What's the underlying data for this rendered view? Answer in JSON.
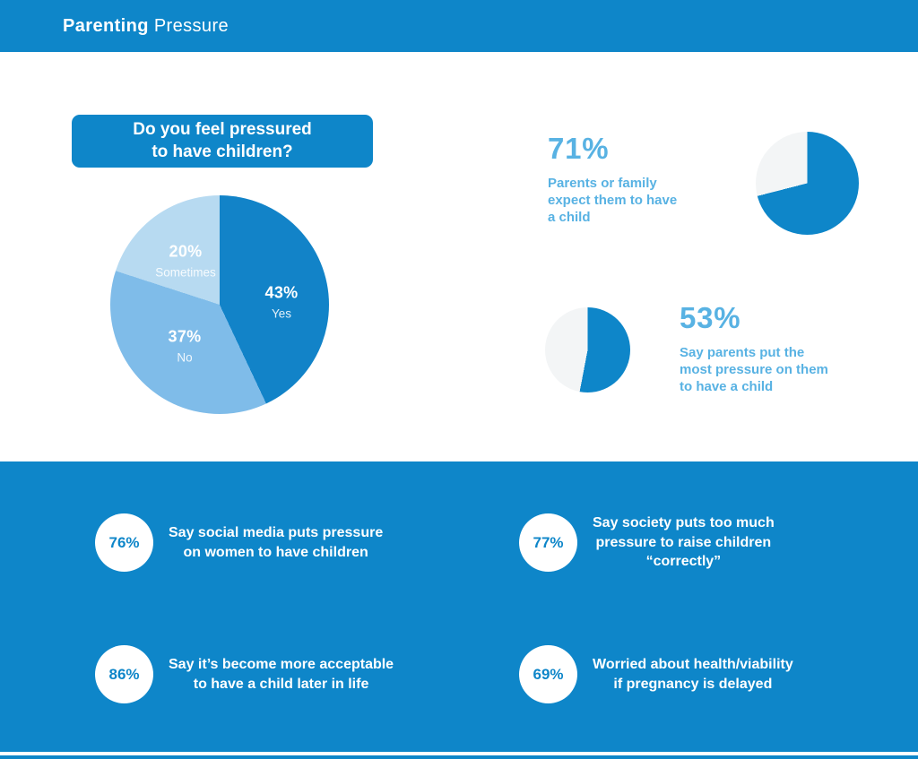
{
  "colors": {
    "primary_blue": "#0e86c9",
    "accent_text_blue": "#58b2e3",
    "pie_yes": "#1283c8",
    "pie_no": "#7fbce9",
    "pie_sometimes": "#b7daf1",
    "donut_empty": "#f3f5f6",
    "stat_circle_bg": "#ffffff"
  },
  "header": {
    "title_bold": "Parenting",
    "title_light": "Pressure"
  },
  "question_badge": {
    "lines": [
      "Do you feel pressured",
      "to have children?"
    ]
  },
  "chart_data": [
    {
      "type": "pie",
      "title": "Do you feel pressured to have children?",
      "slices": [
        {
          "label": "Yes",
          "value": 43,
          "display": "43%"
        },
        {
          "label": "No",
          "value": 37,
          "display": "37%"
        },
        {
          "label": "Sometimes",
          "value": 20,
          "display": "20%"
        }
      ]
    },
    {
      "type": "pie",
      "value": 71,
      "display": "71%",
      "label": "Parents or family expect them to have a child",
      "label_lines": [
        "Parents or family",
        "expect them to have",
        "a child"
      ]
    },
    {
      "type": "pie",
      "value": 53,
      "display": "53%",
      "label": "Say parents put the most pressure on them to have a child",
      "label_lines": [
        "Say parents put the",
        "most pressure on them",
        "to have a child"
      ]
    }
  ],
  "stats": [
    {
      "value": "76%",
      "label_lines": [
        "Say social media puts pressure",
        "on women to have children"
      ]
    },
    {
      "value": "77%",
      "label_lines": [
        "Say society puts too much",
        "pressure to raise children",
        "“correctly”"
      ]
    },
    {
      "value": "86%",
      "label_lines": [
        "Say it’s become more acceptable",
        "to have a child later in life"
      ]
    },
    {
      "value": "69%",
      "label_lines": [
        "Worried about health/viability",
        "if pregnancy is delayed"
      ]
    }
  ]
}
